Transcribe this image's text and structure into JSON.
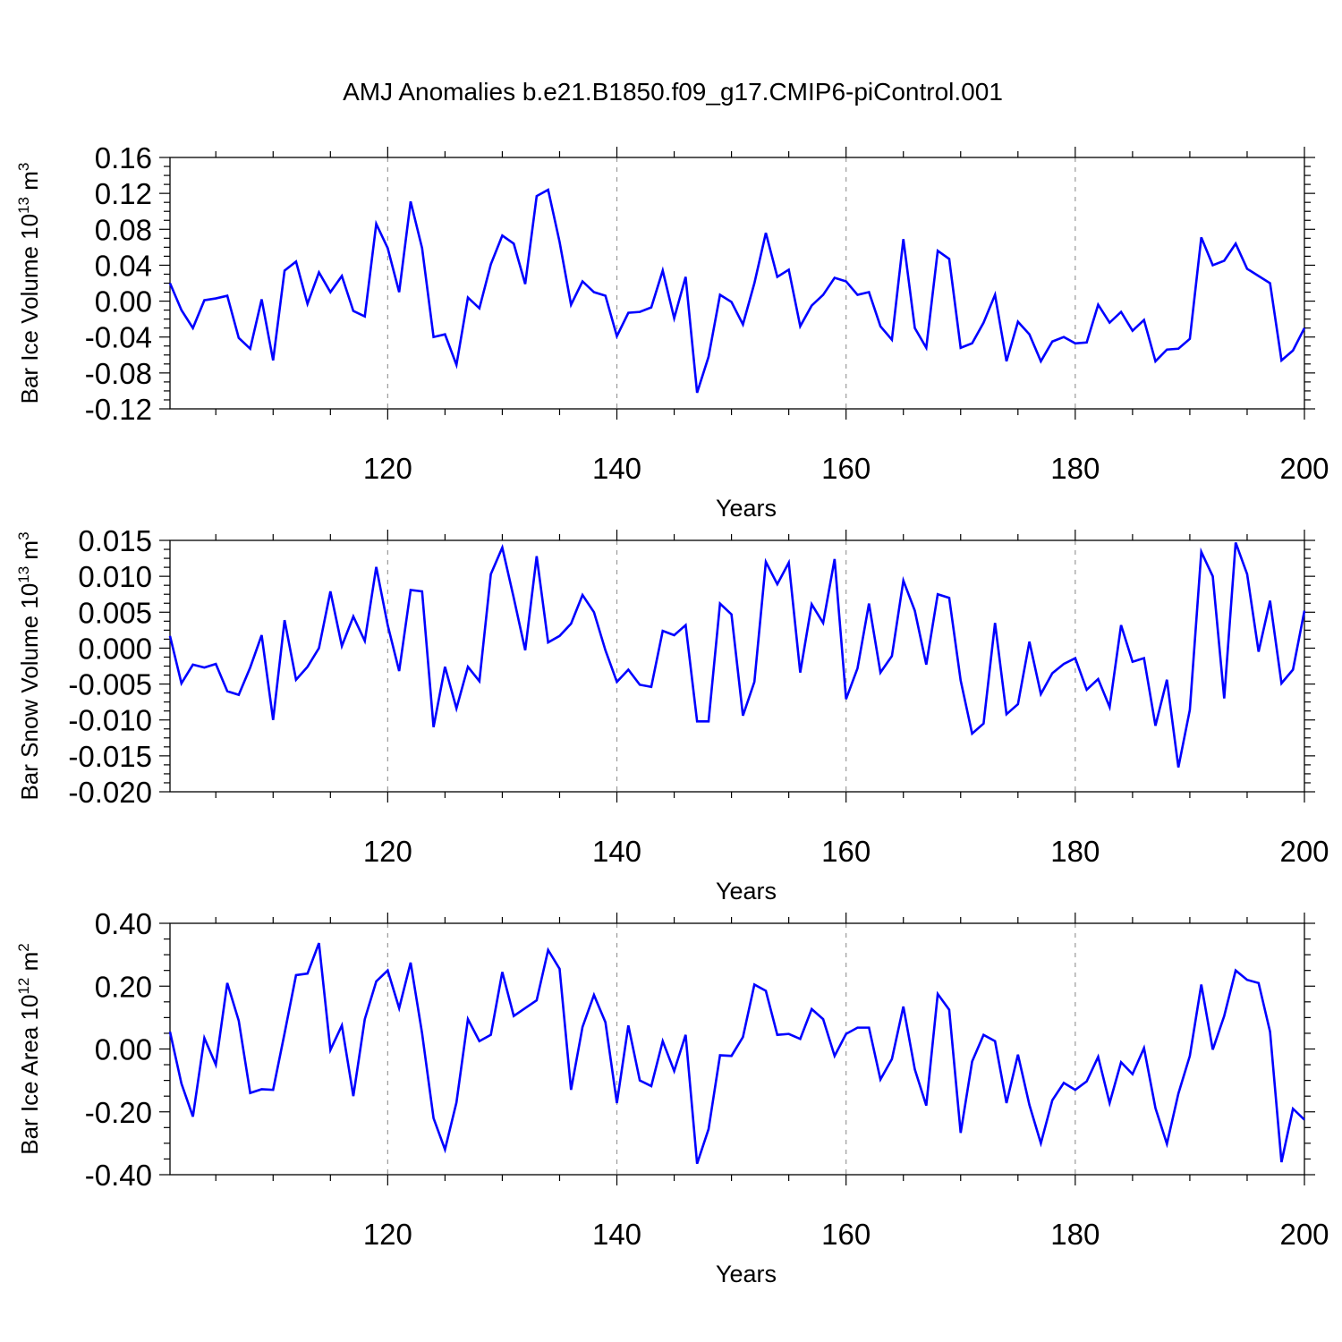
{
  "figure": {
    "title": "AMJ Anomalies b.e21.B1850.f09_g17.CMIP6-piControl.001"
  },
  "style": {
    "line_color": "#0000ff",
    "grid_color": "#9a9a9a",
    "axis_color": "#000000"
  },
  "chart_data": [
    {
      "type": "line",
      "ylabel": "Bar Ice Volume 10",
      "ylabel_exp": "13",
      "ylabel_unit": " m",
      "ylabel_unit_exp": "3",
      "xlabel": "Years",
      "xlim": [
        101,
        200
      ],
      "ylim": [
        -0.12,
        0.16
      ],
      "xticks": [
        120,
        140,
        160,
        180,
        200
      ],
      "xtick_labels": [
        "120",
        "140",
        "160",
        "180",
        "200"
      ],
      "yticks": [
        0.16,
        0.12,
        0.08,
        0.04,
        0.0,
        -0.04,
        -0.08,
        -0.12
      ],
      "ytick_labels": [
        "0.16",
        "0.12",
        "0.08",
        "0.04",
        "0.00",
        "-0.04",
        "-0.08",
        "-0.12"
      ],
      "grid": "dashed vertical at major x ticks",
      "x": [
        101,
        102,
        103,
        104,
        105,
        106,
        107,
        108,
        109,
        110,
        111,
        112,
        113,
        114,
        115,
        116,
        117,
        118,
        119,
        120,
        121,
        122,
        123,
        124,
        125,
        126,
        127,
        128,
        129,
        130,
        131,
        132,
        133,
        134,
        135,
        136,
        137,
        138,
        139,
        140,
        141,
        142,
        143,
        144,
        145,
        146,
        147,
        148,
        149,
        150,
        151,
        152,
        153,
        154,
        155,
        156,
        157,
        158,
        159,
        160,
        161,
        162,
        163,
        164,
        165,
        166,
        167,
        168,
        169,
        170,
        171,
        172,
        173,
        174,
        175,
        176,
        177,
        178,
        179,
        180,
        181,
        182,
        183,
        184,
        185,
        186,
        187,
        188,
        189,
        190,
        191,
        192,
        193,
        194,
        195,
        196,
        197,
        198,
        199,
        200
      ],
      "values": [
        0.02,
        -0.01,
        -0.03,
        0.001,
        0.003,
        0.006,
        -0.041,
        -0.053,
        0.002,
        -0.066,
        0.034,
        0.044,
        -0.003,
        0.032,
        0.01,
        0.028,
        -0.011,
        -0.017,
        0.086,
        0.059,
        0.01,
        0.111,
        0.059,
        -0.04,
        -0.037,
        -0.071,
        0.004,
        -0.008,
        0.041,
        0.073,
        0.064,
        0.019,
        0.117,
        0.124,
        0.066,
        -0.004,
        0.022,
        0.01,
        0.006,
        -0.039,
        -0.013,
        -0.012,
        -0.007,
        0.034,
        -0.019,
        0.027,
        -0.102,
        -0.062,
        0.007,
        -0.001,
        -0.026,
        0.02,
        0.076,
        0.027,
        0.035,
        -0.028,
        -0.005,
        0.007,
        0.026,
        0.022,
        0.007,
        0.01,
        -0.028,
        -0.043,
        0.069,
        -0.03,
        -0.052,
        0.056,
        0.047,
        -0.052,
        -0.047,
        -0.024,
        0.007,
        -0.067,
        -0.023,
        -0.037,
        -0.067,
        -0.045,
        -0.04,
        -0.047,
        -0.046,
        -0.004,
        -0.024,
        -0.012,
        -0.033,
        -0.021,
        -0.067,
        -0.054,
        -0.053,
        -0.042,
        0.071,
        0.04,
        0.045,
        0.064,
        0.036,
        0.028,
        0.02,
        -0.066,
        -0.055,
        -0.03
      ]
    },
    {
      "type": "line",
      "ylabel": "Bar Snow Volume 10",
      "ylabel_exp": "13",
      "ylabel_unit": " m",
      "ylabel_unit_exp": "3",
      "xlabel": "Years",
      "xlim": [
        101,
        200
      ],
      "ylim": [
        -0.02,
        0.015
      ],
      "xticks": [
        120,
        140,
        160,
        180,
        200
      ],
      "xtick_labels": [
        "120",
        "140",
        "160",
        "180",
        "200"
      ],
      "yticks": [
        0.015,
        0.01,
        0.005,
        0.0,
        -0.005,
        -0.01,
        -0.015,
        -0.02
      ],
      "ytick_labels": [
        "0.015",
        "0.010",
        "0.005",
        "0.000",
        "-0.005",
        "-0.010",
        "-0.015",
        "-0.020"
      ],
      "grid": "dashed vertical at major x ticks",
      "x": [
        101,
        102,
        103,
        104,
        105,
        106,
        107,
        108,
        109,
        110,
        111,
        112,
        113,
        114,
        115,
        116,
        117,
        118,
        119,
        120,
        121,
        122,
        123,
        124,
        125,
        126,
        127,
        128,
        129,
        130,
        131,
        132,
        133,
        134,
        135,
        136,
        137,
        138,
        139,
        140,
        141,
        142,
        143,
        144,
        145,
        146,
        147,
        148,
        149,
        150,
        151,
        152,
        153,
        154,
        155,
        156,
        157,
        158,
        159,
        160,
        161,
        162,
        163,
        164,
        165,
        166,
        167,
        168,
        169,
        170,
        171,
        172,
        173,
        174,
        175,
        176,
        177,
        178,
        179,
        180,
        181,
        182,
        183,
        184,
        185,
        186,
        187,
        188,
        189,
        190,
        191,
        192,
        193,
        194,
        195,
        196,
        197,
        198,
        199,
        200
      ],
      "values": [
        0.0017,
        -0.0049,
        -0.0023,
        -0.0027,
        -0.0022,
        -0.006,
        -0.0065,
        -0.0027,
        0.0018,
        -0.01,
        0.0039,
        -0.0044,
        -0.0026,
        0.0,
        0.0079,
        0.0003,
        0.0044,
        0.001,
        0.0113,
        0.0032,
        -0.0032,
        0.0081,
        0.0079,
        -0.011,
        -0.0026,
        -0.0084,
        -0.0026,
        -0.0046,
        0.0103,
        0.014,
        0.007,
        -0.0003,
        0.0128,
        0.0008,
        0.0017,
        0.0034,
        0.0074,
        0.005,
        -0.0003,
        -0.0047,
        -0.003,
        -0.0051,
        -0.0054,
        0.0024,
        0.0018,
        0.0032,
        -0.0102,
        -0.0102,
        0.0062,
        0.0047,
        -0.0094,
        -0.0047,
        0.012,
        0.0089,
        0.0119,
        -0.0034,
        0.0061,
        0.0035,
        0.0124,
        -0.0071,
        -0.0028,
        0.0062,
        -0.0034,
        -0.0011,
        0.0094,
        0.0052,
        -0.0023,
        0.0075,
        0.007,
        -0.0045,
        -0.0119,
        -0.0105,
        0.0035,
        -0.0092,
        -0.0078,
        0.0009,
        -0.0064,
        -0.0035,
        -0.0022,
        -0.0014,
        -0.0058,
        -0.0043,
        -0.0082,
        0.0032,
        -0.0019,
        -0.0014,
        -0.0108,
        -0.0044,
        -0.0166,
        -0.0086,
        0.0134,
        0.01,
        -0.007,
        0.0147,
        0.0103,
        -0.0005,
        0.0066,
        -0.0049,
        -0.003,
        0.0052
      ]
    },
    {
      "type": "line",
      "ylabel": "Bar Ice Area 10",
      "ylabel_exp": "12",
      "ylabel_unit": " m",
      "ylabel_unit_exp": "2",
      "xlabel": "Years",
      "xlim": [
        101,
        200
      ],
      "ylim": [
        -0.4,
        0.4
      ],
      "xticks": [
        120,
        140,
        160,
        180,
        200
      ],
      "xtick_labels": [
        "120",
        "140",
        "160",
        "180",
        "200"
      ],
      "yticks": [
        0.4,
        0.2,
        0.0,
        -0.2,
        -0.4
      ],
      "ytick_labels": [
        "0.40",
        "0.20",
        "0.00",
        "-0.20",
        "-0.40"
      ],
      "grid": "dashed vertical at major x ticks",
      "x": [
        101,
        102,
        103,
        104,
        105,
        106,
        107,
        108,
        109,
        110,
        111,
        112,
        113,
        114,
        115,
        116,
        117,
        118,
        119,
        120,
        121,
        122,
        123,
        124,
        125,
        126,
        127,
        128,
        129,
        130,
        131,
        132,
        133,
        134,
        135,
        136,
        137,
        138,
        139,
        140,
        141,
        142,
        143,
        144,
        145,
        146,
        147,
        148,
        149,
        150,
        151,
        152,
        153,
        154,
        155,
        156,
        157,
        158,
        159,
        160,
        161,
        162,
        163,
        164,
        165,
        166,
        167,
        168,
        169,
        170,
        171,
        172,
        173,
        174,
        175,
        176,
        177,
        178,
        179,
        180,
        181,
        182,
        183,
        184,
        185,
        186,
        187,
        188,
        189,
        190,
        191,
        192,
        193,
        194,
        195,
        196,
        197,
        198,
        199,
        200
      ],
      "values": [
        0.055,
        -0.11,
        -0.215,
        0.035,
        -0.05,
        0.21,
        0.09,
        -0.14,
        -0.128,
        -0.13,
        0.05,
        0.235,
        0.24,
        0.337,
        -0.003,
        0.075,
        -0.15,
        0.095,
        0.215,
        0.25,
        0.13,
        0.275,
        0.05,
        -0.22,
        -0.32,
        -0.17,
        0.095,
        0.025,
        0.045,
        0.245,
        0.105,
        0.13,
        0.155,
        0.315,
        0.255,
        -0.13,
        0.07,
        0.172,
        0.085,
        -0.172,
        0.075,
        -0.1,
        -0.118,
        0.025,
        -0.07,
        0.045,
        -0.365,
        -0.255,
        -0.02,
        -0.022,
        0.038,
        0.205,
        0.185,
        0.045,
        0.048,
        0.032,
        0.127,
        0.095,
        -0.022,
        0.048,
        0.068,
        0.068,
        -0.097,
        -0.032,
        0.135,
        -0.065,
        -0.18,
        0.175,
        0.125,
        -0.267,
        -0.04,
        0.045,
        0.025,
        -0.172,
        -0.018,
        -0.178,
        -0.3,
        -0.163,
        -0.108,
        -0.13,
        -0.103,
        -0.025,
        -0.172,
        -0.042,
        -0.08,
        0.003,
        -0.188,
        -0.302,
        -0.142,
        -0.022,
        0.205,
        -0.002,
        0.105,
        0.25,
        0.22,
        0.21,
        0.055,
        -0.36,
        -0.19,
        -0.225
      ]
    }
  ]
}
